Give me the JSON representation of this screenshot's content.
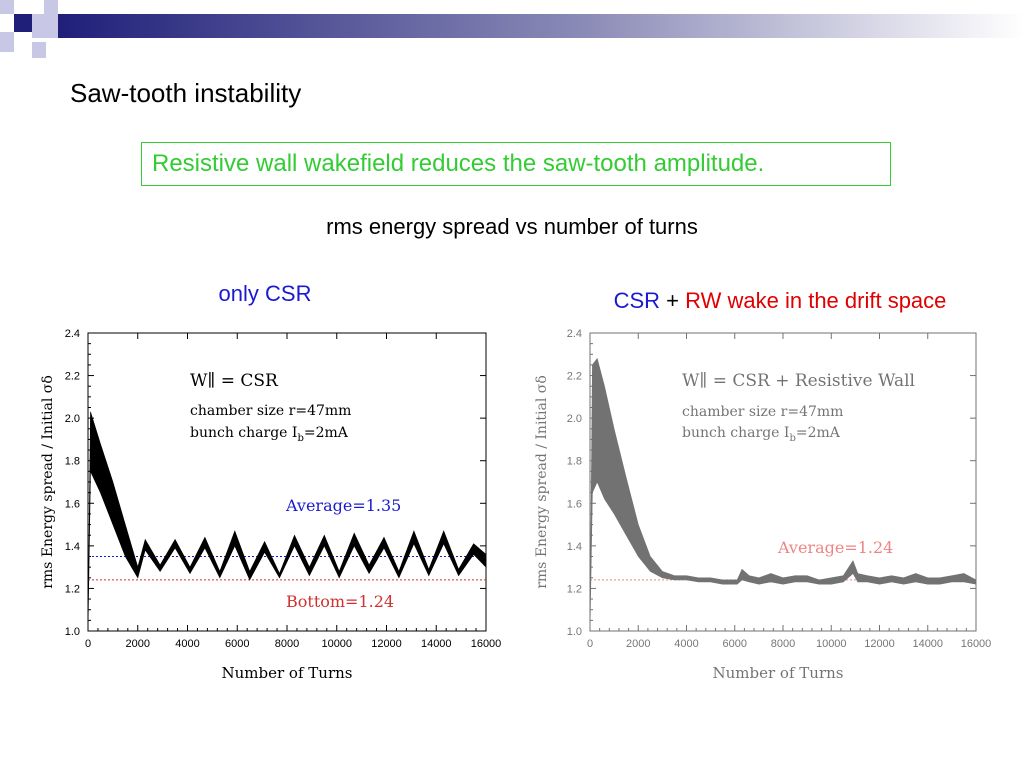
{
  "slide": {
    "title": "Saw-tooth instability",
    "callout": "Resistive wall wakefield reduces the saw-tooth amplitude.",
    "subtitle": "rms energy spread vs number of turns",
    "left_label": "only CSR",
    "right_label": {
      "part1": "CSR",
      "part2": "+",
      "part3": "RW wake in the drift space"
    },
    "colors": {
      "callout": "#33cc33",
      "blue": "#1a1ad0",
      "red": "#e00000",
      "deco_navy": "#1f1f7a"
    }
  },
  "chart_data": [
    {
      "type": "line",
      "xlabel": "Number of Turns",
      "ylabel": "rms Energy spread / Initial σδ",
      "xlim": [
        0,
        16000
      ],
      "ylim": [
        1.0,
        2.4
      ],
      "xticks": [
        0,
        2000,
        4000,
        6000,
        8000,
        10000,
        12000,
        14000,
        16000
      ],
      "yticks": [
        "1.0",
        "1.2",
        "1.4",
        "1.6",
        "1.8",
        "2.0",
        "2.2",
        "2.4"
      ],
      "grid": false,
      "annotations": {
        "wake": "W∥ = CSR",
        "chamber": "chamber size r=47mm",
        "charge_prefix": "bunch charge I",
        "charge_sub": "b",
        "charge_suffix": "=2mA",
        "average_label": "Average=1.35",
        "bottom_label": "Bottom=1.24"
      },
      "reference_lines": {
        "average": 1.35,
        "bottom": 1.24
      },
      "envelope": {
        "x": [
          0,
          100,
          500,
          1000,
          1500,
          2000,
          2300,
          2900,
          3500,
          4100,
          4700,
          5300,
          5900,
          6500,
          7100,
          7700,
          8300,
          8900,
          9500,
          10100,
          10700,
          11300,
          11900,
          12500,
          13100,
          13700,
          14300,
          14900,
          15500,
          16000
        ],
        "upper": [
          1.0,
          2.03,
          1.88,
          1.7,
          1.5,
          1.3,
          1.43,
          1.31,
          1.43,
          1.3,
          1.44,
          1.28,
          1.47,
          1.28,
          1.42,
          1.27,
          1.45,
          1.3,
          1.45,
          1.28,
          1.46,
          1.31,
          1.44,
          1.28,
          1.47,
          1.29,
          1.47,
          1.29,
          1.41,
          1.36
        ],
        "lower": [
          1.0,
          1.75,
          1.65,
          1.5,
          1.35,
          1.25,
          1.38,
          1.28,
          1.39,
          1.27,
          1.39,
          1.25,
          1.4,
          1.24,
          1.37,
          1.25,
          1.4,
          1.26,
          1.4,
          1.25,
          1.4,
          1.27,
          1.39,
          1.25,
          1.41,
          1.26,
          1.41,
          1.26,
          1.36,
          1.3
        ]
      }
    },
    {
      "type": "line",
      "xlabel": "Number of Turns",
      "ylabel": "rms Energy spread / Initial σδ",
      "xlim": [
        0,
        16000
      ],
      "ylim": [
        1.0,
        2.4
      ],
      "xticks": [
        0,
        2000,
        4000,
        6000,
        8000,
        10000,
        12000,
        14000,
        16000
      ],
      "yticks": [
        "1.0",
        "1.2",
        "1.4",
        "1.6",
        "1.8",
        "2.0",
        "2.2",
        "2.4"
      ],
      "grid": false,
      "annotations": {
        "wake": "W∥ = CSR + Resistive Wall",
        "chamber": "chamber size r=47mm",
        "charge_prefix": "bunch charge I",
        "charge_sub": "b",
        "charge_suffix": "=2mA",
        "average_label": "Average=1.24"
      },
      "reference_lines": {
        "average": 1.24
      },
      "envelope": {
        "x": [
          0,
          100,
          300,
          600,
          1000,
          1500,
          2000,
          2500,
          3000,
          3500,
          4000,
          4500,
          5000,
          5500,
          6100,
          6300,
          6600,
          7000,
          7500,
          8000,
          8500,
          9000,
          9500,
          10000,
          10500,
          10900,
          11100,
          11500,
          12000,
          12500,
          13000,
          13500,
          14000,
          14500,
          15000,
          15500,
          16000
        ],
        "upper": [
          1.0,
          2.25,
          2.28,
          2.15,
          1.95,
          1.72,
          1.5,
          1.35,
          1.28,
          1.26,
          1.26,
          1.25,
          1.25,
          1.24,
          1.24,
          1.29,
          1.26,
          1.25,
          1.27,
          1.25,
          1.26,
          1.26,
          1.24,
          1.25,
          1.26,
          1.33,
          1.27,
          1.26,
          1.25,
          1.26,
          1.25,
          1.27,
          1.25,
          1.25,
          1.26,
          1.27,
          1.24
        ],
        "lower": [
          1.0,
          1.65,
          1.7,
          1.62,
          1.55,
          1.45,
          1.35,
          1.28,
          1.25,
          1.24,
          1.24,
          1.23,
          1.23,
          1.22,
          1.22,
          1.24,
          1.23,
          1.22,
          1.23,
          1.22,
          1.23,
          1.23,
          1.22,
          1.22,
          1.23,
          1.27,
          1.23,
          1.23,
          1.22,
          1.23,
          1.22,
          1.23,
          1.22,
          1.22,
          1.23,
          1.23,
          1.22
        ]
      }
    }
  ]
}
